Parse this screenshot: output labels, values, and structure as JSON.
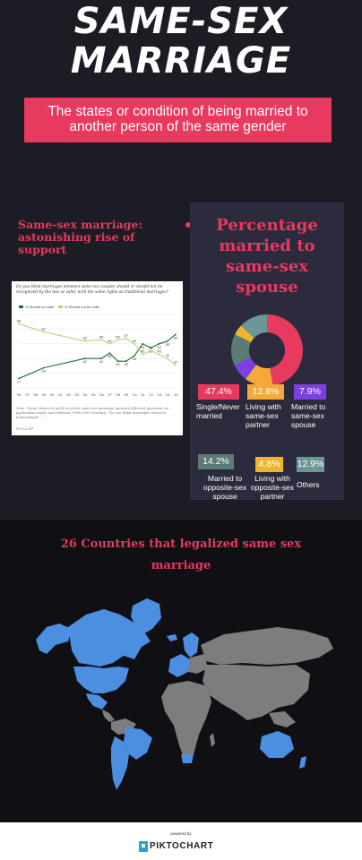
{
  "header": {
    "title_line1": "SAME-SEX",
    "title_line2": "MARRIAGE",
    "definition_line1": "The states  or condition  of being married to",
    "definition_line2": "another  person  of the same gender"
  },
  "support": {
    "heading_line1": "Same-sex marriage:",
    "heading_line2": "astonishing rise of",
    "heading_line3": "support"
  },
  "gallup": {
    "question": "Do you think marriages between same-sex couples should or should not be recognized by the law as valid, with the same rights as traditional marriages?",
    "note": "Note: Trend shown for polls in which same-sex marriage question followed questions on gay/lesbian rights and relations 1996-2005 wording: \"Do you think marriages between homosexuals ...\"",
    "logo": "GALLUP",
    "chart_data": {
      "type": "line",
      "x": [
        "'96",
        "'97",
        "'98",
        "'99",
        "'00",
        "'01",
        "'02",
        "'03",
        "'04",
        "'05",
        "'06",
        "'07",
        "'08",
        "'09",
        "'10",
        "'11",
        "'12",
        "'13",
        "'14",
        "'15"
      ],
      "ylim": [
        20,
        75
      ],
      "series": [
        {
          "name": "% Should be valid",
          "color": "#1b6b2e",
          "values": [
            27,
            null,
            null,
            35,
            null,
            null,
            null,
            null,
            42,
            null,
            42,
            46,
            40,
            40,
            44,
            53,
            50,
            53,
            55,
            60
          ],
          "labels": [
            "27",
            "",
            "",
            "35",
            "",
            "",
            "",
            "",
            "42",
            "",
            "42",
            "46",
            "40",
            "40",
            "44",
            "53",
            "50",
            "53",
            "55",
            "60"
          ]
        },
        {
          "name": "% Should not be valid",
          "color": "#b5d47a",
          "values": [
            68,
            null,
            null,
            62,
            null,
            null,
            null,
            null,
            55,
            null,
            56,
            53,
            56,
            57,
            53,
            45,
            48,
            45,
            42,
            37
          ],
          "labels": [
            "68",
            "",
            "",
            "62",
            "",
            "",
            "",
            "",
            "55",
            "",
            "56",
            "53",
            "56",
            "57",
            "53",
            "45",
            "48",
            "45",
            "42",
            "37"
          ]
        }
      ]
    }
  },
  "percentage": {
    "title_line1": "Percentage",
    "title_line2": "married to",
    "title_line3": "same-sex",
    "title_line4": "spouse",
    "chart_data": {
      "type": "pie",
      "slices": [
        {
          "label": "Single/Never married",
          "value": 47.4,
          "color": "#e8395f"
        },
        {
          "label": "Living with same-sex partner",
          "value": 12.8,
          "color": "#f5a93b"
        },
        {
          "label": "Married to same-sex spouse",
          "value": 7.9,
          "color": "#7b3fe4"
        },
        {
          "label": "Married to opposite-sex spouse",
          "value": 14.2,
          "color": "#5c7a76"
        },
        {
          "label": "Living with opposite-sex partner",
          "value": 4.8,
          "color": "#f0b530"
        },
        {
          "label": "Others",
          "value": 12.9,
          "color": "#6a9895"
        }
      ]
    },
    "items": [
      {
        "pct": "47.4%",
        "label_l1": "Single/Never",
        "label_l2": "married",
        "label_l3": "",
        "color": "#e8395f"
      },
      {
        "pct": "12.8%",
        "label_l1": "Living with",
        "label_l2": "same-sex",
        "label_l3": "partner",
        "color": "#f5a93b"
      },
      {
        "pct": "7.9%",
        "label_l1": "Married to",
        "label_l2": "same-sex",
        "label_l3": "spouse",
        "color": "#7b3fe4"
      },
      {
        "pct": "14.2%",
        "label_l1": "Married to",
        "label_l2": "opposite-sex",
        "label_l3": "spouse",
        "color": "#5c7a76"
      },
      {
        "pct": "4.8%",
        "label_l1": "Living with",
        "label_l2": "opposite-sex",
        "label_l3": "partner",
        "color": "#f0b530"
      },
      {
        "pct": "12.9%",
        "label_l1": "Others",
        "label_l2": "",
        "label_l3": "",
        "color": "#6a9895"
      }
    ]
  },
  "map": {
    "title_line1": "26 Countries that legalized same sex",
    "title_line2": "marriage",
    "legal_color": "#4c8fe0",
    "other_color": "#7d7d7d"
  },
  "footer": {
    "powered_by": "powered by",
    "brand": "PIKTOCHART"
  }
}
